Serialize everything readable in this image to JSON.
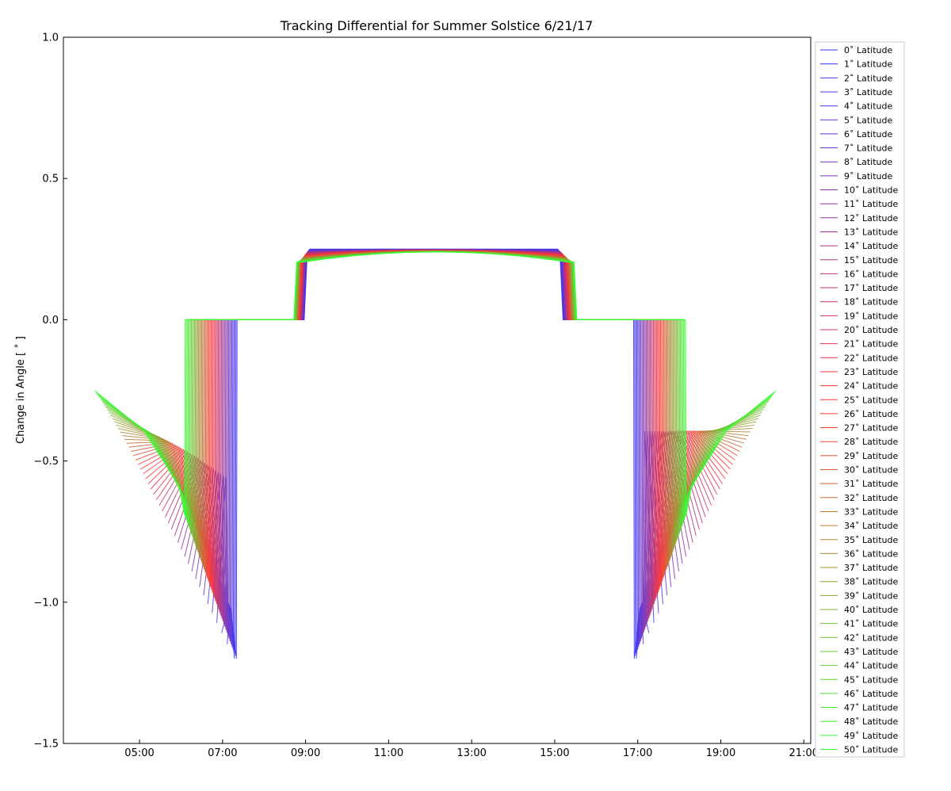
{
  "chart_data": {
    "type": "line",
    "title": "Tracking Differential for Summer Solstice 6/21/17",
    "xlabel": "",
    "ylabel": "Change in Angle [ ˚ ]",
    "xlim": [
      "03:10",
      "21:10"
    ],
    "ylim": [
      -1.5,
      1.0
    ],
    "x_ticks": [
      "05:00",
      "07:00",
      "09:00",
      "11:00",
      "13:00",
      "15:00",
      "17:00",
      "19:00",
      "21:00"
    ],
    "y_ticks": [
      "1.0",
      "0.5",
      "0.0",
      "−0.5",
      "−1.0",
      "−1.5"
    ],
    "grid": false,
    "legend_position": "right",
    "series_count": 51,
    "series_label_format": "{lat}˚ Latitude",
    "series_colors": {
      "low": "#3333ff",
      "mid": "#ff3333",
      "high": "#33ff33"
    },
    "series_shape": {
      "zero_at_lat": {
        "sunrise": "07:20",
        "sunset": "16:55",
        "plateau_start": "09:00",
        "plateau_end": "15:10",
        "morning_min": -1.2,
        "evening_min": -1.2,
        "plateau_value": 0.25
      },
      "fifty_at_lat": {
        "sunrise": "06:05",
        "sunset": "18:10",
        "plateau_start": "08:45",
        "plateau_end": "15:30",
        "morning_min": -0.69,
        "evening_min": -0.69,
        "plateau_value": 0.24,
        "first_point": "03:55",
        "first_value": -0.25,
        "last_point": "20:20",
        "last_value": -0.25
      }
    }
  }
}
